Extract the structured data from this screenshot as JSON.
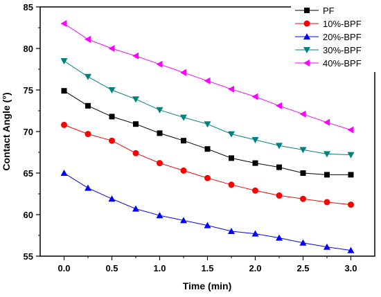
{
  "chart_data": {
    "type": "line",
    "title": "",
    "xlabel": "Time (min)",
    "ylabel": "Contact Angle (°)",
    "xlim": [
      -0.25,
      3.25
    ],
    "ylim": [
      55,
      85
    ],
    "xticks": [
      "0.0",
      "0.5",
      "1.0",
      "1.5",
      "2.0",
      "2.5",
      "3.0"
    ],
    "yticks": [
      "55",
      "60",
      "65",
      "70",
      "75",
      "80",
      "85"
    ],
    "x": [
      0,
      0.25,
      0.5,
      0.75,
      1.0,
      1.25,
      1.5,
      1.75,
      2.0,
      2.25,
      2.5,
      2.75,
      3.0
    ],
    "grid": false,
    "legend_position": "top-right",
    "series": [
      {
        "name": "PF",
        "marker": "square",
        "color": "#000000",
        "values": [
          74.9,
          73.1,
          71.8,
          70.9,
          69.8,
          68.9,
          67.9,
          66.8,
          66.2,
          65.7,
          65.0,
          64.8,
          64.8
        ]
      },
      {
        "name": "10%-BPF",
        "marker": "circle",
        "color": "#ff0000",
        "values": [
          70.8,
          69.7,
          68.9,
          67.4,
          66.2,
          65.3,
          64.4,
          63.6,
          62.9,
          62.3,
          61.9,
          61.5,
          61.2
        ]
      },
      {
        "name": "20%-BPF",
        "marker": "triangle-up",
        "color": "#0000ff",
        "values": [
          65.0,
          63.2,
          61.9,
          60.7,
          59.9,
          59.3,
          58.7,
          58.0,
          57.7,
          57.2,
          56.6,
          56.1,
          55.7
        ]
      },
      {
        "name": "30%-BPF",
        "marker": "triangle-down",
        "color": "#008080",
        "values": [
          78.5,
          76.6,
          75.0,
          73.9,
          72.6,
          71.7,
          70.9,
          69.7,
          69.0,
          68.3,
          67.8,
          67.3,
          67.2
        ]
      },
      {
        "name": "40%-BPF",
        "marker": "triangle-left",
        "color": "#ff00ff",
        "values": [
          83.0,
          81.1,
          80.0,
          79.1,
          78.1,
          77.1,
          76.1,
          75.1,
          74.2,
          73.1,
          72.1,
          71.1,
          70.2
        ]
      }
    ]
  }
}
